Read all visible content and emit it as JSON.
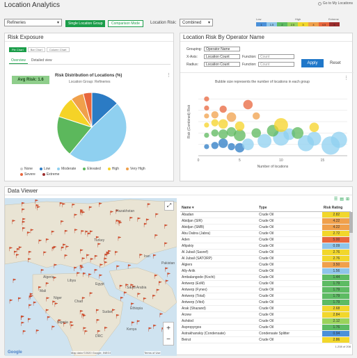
{
  "header": {
    "title": "Location Analytics",
    "goto_link": "Go to My Locations",
    "dataset_select": "Refineries",
    "mode_buttons": [
      "Single Location Group",
      "Comparison Mode"
    ],
    "location_risk_label": "Location Risk:",
    "location_risk_select": "Combined",
    "risk_scale": {
      "labels": [
        "Low",
        "High",
        "Extreme"
      ],
      "cells": [
        {
          "text": "1",
          "color": "#4a90d9"
        },
        {
          "text": "1.5",
          "color": "#8fc5ea"
        },
        {
          "text": "2",
          "color": "#5dbb63"
        },
        {
          "text": "2.5",
          "color": "#9ad35c"
        },
        {
          "text": "3",
          "color": "#f2d72b"
        },
        {
          "text": "4",
          "color": "#f0a04b"
        },
        {
          "text": "4.5",
          "color": "#e8663c"
        },
        {
          "text": "5",
          "color": "#9b2c2c"
        }
      ]
    }
  },
  "risk_exposure": {
    "title": "Risk Exposure",
    "chart_types": [
      "Pie Chart",
      "Bar Chart",
      "Column Chart"
    ],
    "tabs": [
      "Overview",
      "Detailed view"
    ],
    "avg_risk": "Avg Risk: 1.6",
    "chart_title": "Risk Distribution of Locations (%)",
    "chart_subtitle": "Location Group: Refineries",
    "legend": [
      {
        "name": "None",
        "color": "#cccccc"
      },
      {
        "name": "Low",
        "color": "#2b7bc4"
      },
      {
        "name": "Moderate",
        "color": "#8fd0f0"
      },
      {
        "name": "Elevated",
        "color": "#5cb85c"
      },
      {
        "name": "High",
        "color": "#f5d327"
      },
      {
        "name": "Very High",
        "color": "#f0a04b"
      },
      {
        "name": "Severe",
        "color": "#e8663c"
      },
      {
        "name": "Extreme",
        "color": "#9b2c2c"
      }
    ]
  },
  "operator_risk": {
    "title": "Location Risk By Operator Name",
    "grouping_label": "Grouping:",
    "grouping_value": "Operator Name",
    "xaxis_label": "X-Axis:",
    "xaxis_value": "Location Count",
    "radius_label": "Radius:",
    "radius_value": "Location Count",
    "function_label": "Function:",
    "function_value_1": "Count",
    "function_value_2": "Count",
    "apply": "Apply",
    "reset": "Reset",
    "chart_note": "Bubble size represents the number of locations in each group"
  },
  "data_viewer": {
    "title": "Data Viewer",
    "map_attribution": "Map data ©2020 Google, INEGI",
    "map_terms": "Terms of Use",
    "map_labels": [
      "Kazakhstan",
      "Turkey",
      "Libya",
      "Egypt",
      "Saudi Arabia",
      "Sudan",
      "Chad",
      "Niger",
      "Mali",
      "Nigeria",
      "Ethiopia",
      "Kenya",
      "DRC",
      "Algeria",
      "Iran",
      "Pakistan"
    ],
    "columns": [
      "Name",
      "Type",
      "Risk Rating"
    ],
    "rows": [
      {
        "name": "Abadan",
        "type": "Crude Oil",
        "rating": "2.82",
        "color": "#f2d72b"
      },
      {
        "name": "Abidjan (SIR)",
        "type": "Crude Oil",
        "rating": "4.22",
        "color": "#f0a04b"
      },
      {
        "name": "Abidjan (SMB)",
        "type": "Crude Oil",
        "rating": "4.22",
        "color": "#f0a04b"
      },
      {
        "name": "Abu Dabra (Jabra)",
        "type": "Crude Oil",
        "rating": "2.72",
        "color": "#f2d72b"
      },
      {
        "name": "Aden",
        "type": "Crude Oil",
        "rating": "5.00",
        "color": "#e8663c"
      },
      {
        "name": "Afipskiy",
        "type": "Crude Oil",
        "rating": "0.09",
        "color": "#8fc5ea"
      },
      {
        "name": "Al Jubail (Sasref)",
        "type": "Crude Oil",
        "rating": "2.76",
        "color": "#f2d72b"
      },
      {
        "name": "Al Jubail (SATORP)",
        "type": "Crude Oil",
        "rating": "2.76",
        "color": "#f2d72b"
      },
      {
        "name": "Algiers",
        "type": "Crude Oil",
        "rating": "3.50",
        "color": "#f0a04b"
      },
      {
        "name": "Ally-Ariik",
        "type": "Crude Oil",
        "rating": "1.56",
        "color": "#8fc5ea"
      },
      {
        "name": "Ambalangode (Kochi)",
        "type": "Crude Oil",
        "rating": "1.44",
        "color": "#5dbb63"
      },
      {
        "name": "Antwerp (ExM)",
        "type": "Crude Oil",
        "rating": "1.79",
        "color": "#5dbb63"
      },
      {
        "name": "Antwerp (Fynex)",
        "type": "Crude Oil",
        "rating": "1.79",
        "color": "#5dbb63"
      },
      {
        "name": "Antwerp (Total)",
        "type": "Crude Oil",
        "rating": "1.79",
        "color": "#5dbb63"
      },
      {
        "name": "Antwerp (Vitol)",
        "type": "Crude Oil",
        "rating": "1.79",
        "color": "#5dbb63"
      },
      {
        "name": "Arak (Shazand)",
        "type": "Crude Oil",
        "rating": "2.68",
        "color": "#f2d72b"
      },
      {
        "name": "Arzew",
        "type": "Crude Oil",
        "rating": "2.84",
        "color": "#f2d72b"
      },
      {
        "name": "Ashdod",
        "type": "Crude Oil",
        "rating": "2.12",
        "color": "#9ad35c"
      },
      {
        "name": "Aspropyrgos",
        "type": "Crude Oil",
        "rating": "1.76",
        "color": "#5dbb63"
      },
      {
        "name": "Astrakhanskiy (Condensate)",
        "type": "Condensate Splitter",
        "rating": "0.94",
        "color": "#4a90d9"
      },
      {
        "name": "Beirut",
        "type": "Crude Oil",
        "rating": "2.86",
        "color": "#f2d72b"
      }
    ],
    "pagination": "1-208 of 208"
  },
  "chart_data": [
    {
      "type": "pie",
      "title": "Risk Distribution of Locations (%)",
      "subtitle": "Location Group: Refineries",
      "categories": [
        "Low",
        "Moderate",
        "Elevated",
        "High",
        "Very High",
        "Severe"
      ],
      "values": [
        13,
        48,
        19,
        10,
        6,
        4
      ],
      "colors": [
        "#2b7bc4",
        "#8fd0f0",
        "#5cb85c",
        "#f5d327",
        "#f0a04b",
        "#e8663c"
      ]
    },
    {
      "type": "scatter",
      "xlabel": "Number of locations",
      "ylabel": "Risk (Combined) Risk",
      "xlim": [
        0,
        18
      ],
      "ylim": [
        0,
        6
      ],
      "xticks": [
        0,
        5,
        10,
        15
      ],
      "points": [
        {
          "x": 1,
          "y": 0.8,
          "r": 1,
          "c": "#2b7bc4"
        },
        {
          "x": 2,
          "y": 0.9,
          "r": 2,
          "c": "#2b7bc4"
        },
        {
          "x": 3,
          "y": 1.1,
          "r": 3,
          "c": "#2b7bc4"
        },
        {
          "x": 4,
          "y": 0.8,
          "r": 2,
          "c": "#2b7bc4"
        },
        {
          "x": 5,
          "y": 0.7,
          "r": 3,
          "c": "#2b7bc4"
        },
        {
          "x": 6,
          "y": 1.0,
          "r": 4,
          "c": "#8fd0f0"
        },
        {
          "x": 8,
          "y": 1.3,
          "r": 5,
          "c": "#8fd0f0"
        },
        {
          "x": 10,
          "y": 1.6,
          "r": 6,
          "c": "#8fd0f0"
        },
        {
          "x": 11,
          "y": 1.9,
          "r": 4,
          "c": "#8fd0f0"
        },
        {
          "x": 13,
          "y": 1.1,
          "r": 6,
          "c": "#8fd0f0"
        },
        {
          "x": 14,
          "y": 1.5,
          "r": 5,
          "c": "#8fd0f0"
        },
        {
          "x": 16,
          "y": 0.9,
          "r": 7,
          "c": "#8fd0f0"
        },
        {
          "x": 17,
          "y": 1.4,
          "r": 6,
          "c": "#8fd0f0"
        },
        {
          "x": 1,
          "y": 1.8,
          "r": 1,
          "c": "#5cb85c"
        },
        {
          "x": 2,
          "y": 2.0,
          "r": 2,
          "c": "#5cb85c"
        },
        {
          "x": 3,
          "y": 1.9,
          "r": 3,
          "c": "#5cb85c"
        },
        {
          "x": 4,
          "y": 2.1,
          "r": 3,
          "c": "#5cb85c"
        },
        {
          "x": 5,
          "y": 1.8,
          "r": 4,
          "c": "#5cb85c"
        },
        {
          "x": 7,
          "y": 2.0,
          "r": 3,
          "c": "#5cb85c"
        },
        {
          "x": 9,
          "y": 2.2,
          "r": 4,
          "c": "#5cb85c"
        },
        {
          "x": 12,
          "y": 2.0,
          "r": 4,
          "c": "#5cb85c"
        },
        {
          "x": 1,
          "y": 2.7,
          "r": 1,
          "c": "#f5d327"
        },
        {
          "x": 2,
          "y": 2.9,
          "r": 2,
          "c": "#f5d327"
        },
        {
          "x": 3,
          "y": 2.8,
          "r": 3,
          "c": "#f5d327"
        },
        {
          "x": 5,
          "y": 2.6,
          "r": 3,
          "c": "#f5d327"
        },
        {
          "x": 10,
          "y": 2.7,
          "r": 5,
          "c": "#f5d327"
        },
        {
          "x": 14,
          "y": 2.5,
          "r": 3,
          "c": "#f5d327"
        },
        {
          "x": 1,
          "y": 3.5,
          "r": 1,
          "c": "#f0a04b"
        },
        {
          "x": 2,
          "y": 3.6,
          "r": 2,
          "c": "#f0a04b"
        },
        {
          "x": 4,
          "y": 3.4,
          "r": 3,
          "c": "#f0a04b"
        },
        {
          "x": 7,
          "y": 3.5,
          "r": 2,
          "c": "#f0a04b"
        },
        {
          "x": 1,
          "y": 4.2,
          "r": 1,
          "c": "#e8663c"
        },
        {
          "x": 3,
          "y": 4.1,
          "r": 2,
          "c": "#e8663c"
        },
        {
          "x": 6,
          "y": 4.5,
          "r": 3,
          "c": "#e8663c"
        },
        {
          "x": 1,
          "y": 5.0,
          "r": 1,
          "c": "#e8663c"
        }
      ]
    }
  ]
}
